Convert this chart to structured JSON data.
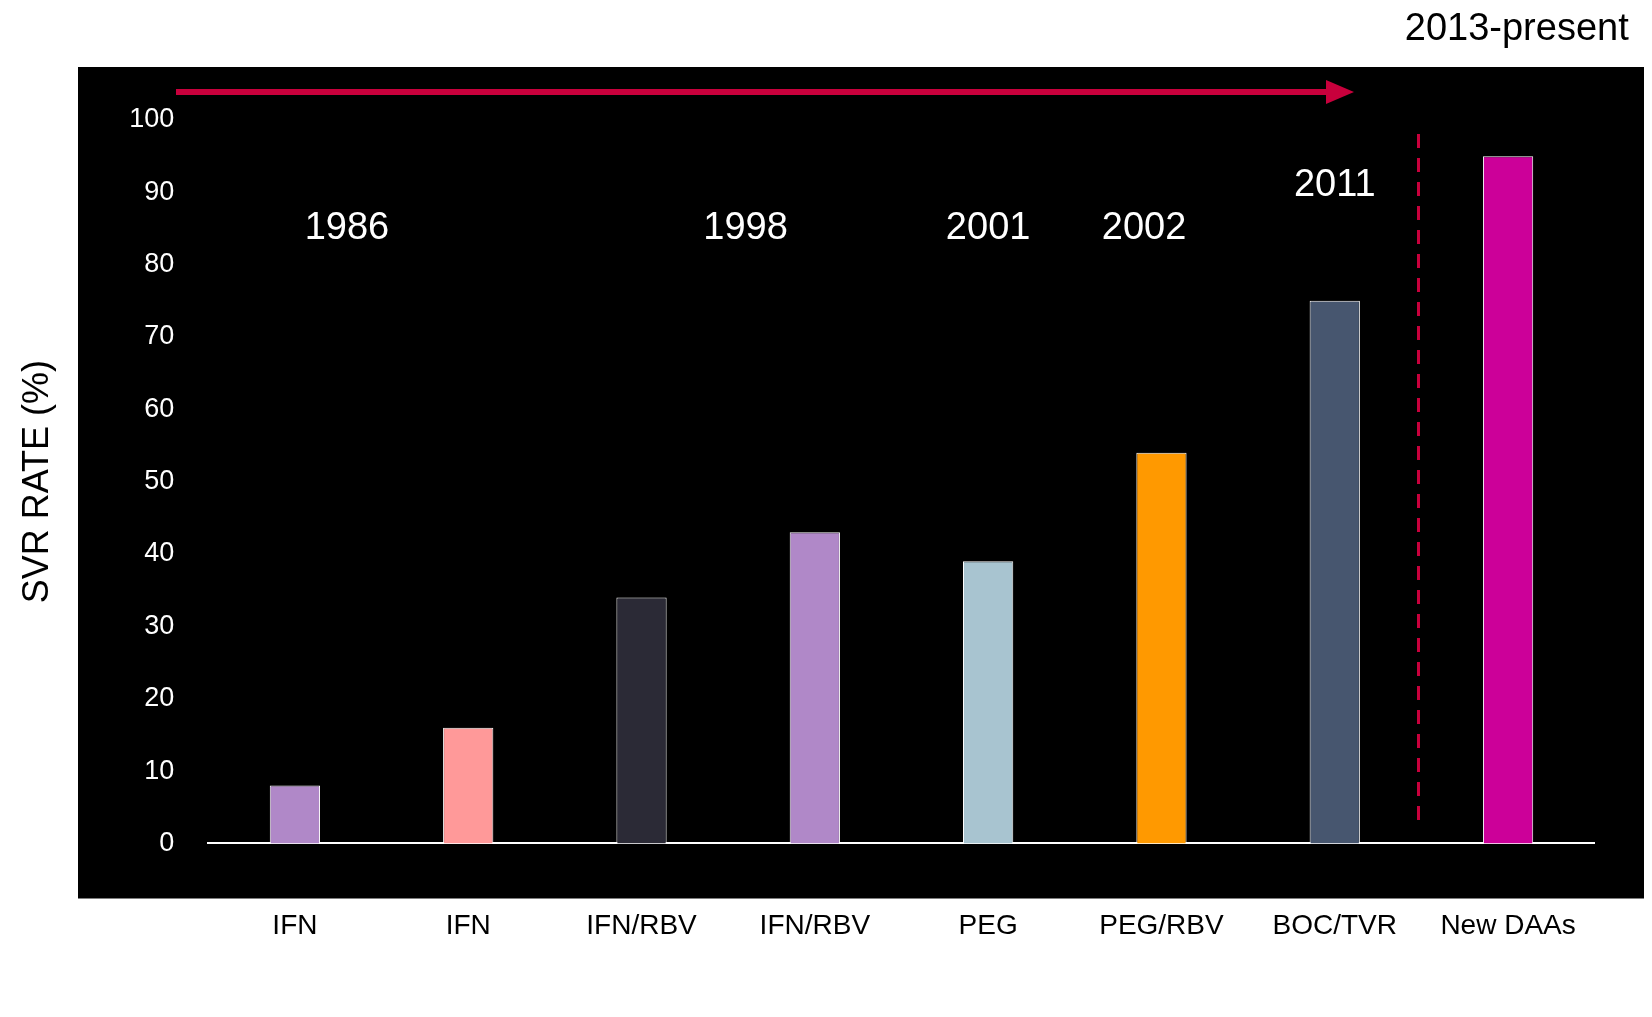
{
  "chart_data": {
    "type": "bar",
    "ylabel": "SVR RATE (%)",
    "categories": [
      "IFN",
      "IFN",
      "IFN/RBV",
      "IFN/RBV",
      "PEG",
      "PEG/RBV",
      "BOC/TVR",
      "New DAAs"
    ],
    "values": [
      8,
      16,
      34,
      43,
      39,
      54,
      75,
      95
    ],
    "colors": [
      "#b088c8",
      "#ff9999",
      "#2b2a36",
      "#b088c8",
      "#a8c4d0",
      "#ff9900",
      "#47566f",
      "#cc0099"
    ],
    "ylim": [
      0,
      100
    ],
    "yticks": [
      0,
      10,
      20,
      30,
      40,
      50,
      60,
      70,
      80,
      90,
      100
    ],
    "grid": false,
    "legend": false,
    "annotations": [
      "1986",
      "1998",
      "2001",
      "2002",
      "2011",
      "2013-present"
    ]
  }
}
